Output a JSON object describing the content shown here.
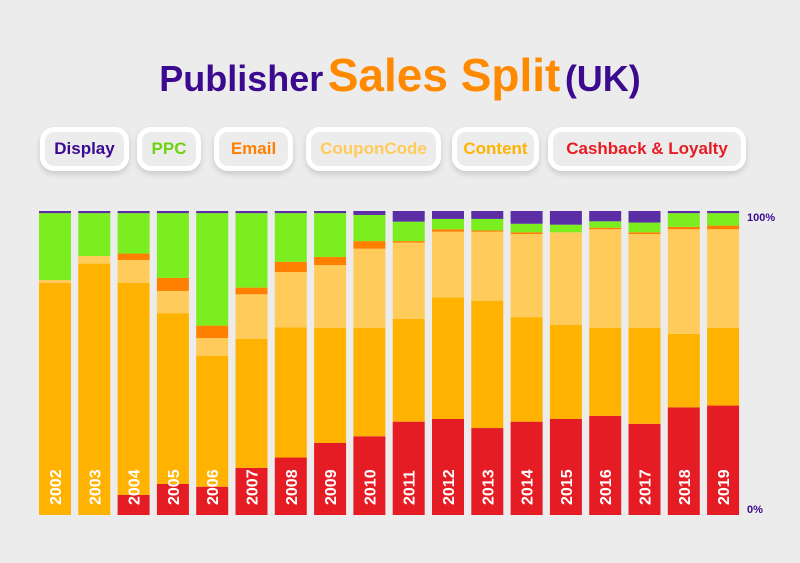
{
  "title": {
    "part1": "Publisher",
    "part2": "Sales Split",
    "part3": "(UK)"
  },
  "legend": [
    {
      "label": "Display",
      "color": "#3b0a8f"
    },
    {
      "label": "PPC",
      "color": "#6fd10f"
    },
    {
      "label": "Email",
      "color": "#ff8000"
    },
    {
      "label": "CouponCode",
      "color": "#ffcb5a"
    },
    {
      "label": "Content",
      "color": "#ffb300"
    },
    {
      "label": "Cashback & Loyalty",
      "color": "#e61c24"
    }
  ],
  "chart_data": {
    "type": "bar",
    "stacked": true,
    "percent": true,
    "title": "Publisher Sales Split (UK)",
    "ylim": [
      0,
      100
    ],
    "ytick_labels": [
      "100%",
      "0%"
    ],
    "categories": [
      "2002",
      "2003",
      "2004",
      "2005",
      "2006",
      "2007",
      "2008",
      "2009",
      "2010",
      "2011",
      "2012",
      "2013",
      "2014",
      "2015",
      "2016",
      "2017",
      "2018",
      "2019"
    ],
    "series": [
      {
        "name": "Cashback & Loyalty",
        "color": "#e61c24",
        "values": [
          0,
          0,
          6.6,
          10.2,
          9.3,
          15.5,
          18.9,
          23.7,
          25.9,
          30.7,
          31.6,
          28.6,
          30.7,
          31.6,
          32.6,
          30.0,
          35.4,
          36.0
        ]
      },
      {
        "name": "Content",
        "color": "#ffb300",
        "values": [
          76.4,
          82.7,
          69.8,
          56.2,
          43.1,
          42.4,
          42.8,
          37.9,
          35.7,
          33.8,
          40.0,
          41.9,
          34.4,
          30.9,
          29.0,
          31.6,
          24.2,
          25.6
        ]
      },
      {
        "name": "CouponCode",
        "color": "#ffcb5a",
        "values": [
          0.9,
          2.5,
          7.5,
          7.3,
          5.8,
          14.7,
          18.2,
          20.6,
          26.0,
          25.1,
          21.6,
          22.7,
          27.3,
          30.5,
          32.4,
          30.8,
          34.4,
          32.4
        ]
      },
      {
        "name": "Email",
        "color": "#ff8000",
        "values": [
          0,
          0,
          2.1,
          4.3,
          4.1,
          2.2,
          3.4,
          2.7,
          2.5,
          0.5,
          0.8,
          0.4,
          0.6,
          0,
          0.5,
          0.6,
          0.8,
          1.2
        ]
      },
      {
        "name": "PPC",
        "color": "#7aee1e",
        "values": [
          22.0,
          14.1,
          13.3,
          21.3,
          37.0,
          24.5,
          16.0,
          14.4,
          8.6,
          6.4,
          3.4,
          3.8,
          2.8,
          2.5,
          2.1,
          3.2,
          4.5,
          4.1
        ]
      },
      {
        "name": "Display",
        "color": "#5b2ea6",
        "values": [
          0.7,
          0.7,
          0.7,
          0.7,
          0.7,
          0.7,
          0.7,
          0.7,
          1.3,
          3.5,
          2.6,
          2.6,
          4.2,
          4.5,
          3.4,
          3.8,
          0.7,
          0.7
        ]
      }
    ]
  }
}
